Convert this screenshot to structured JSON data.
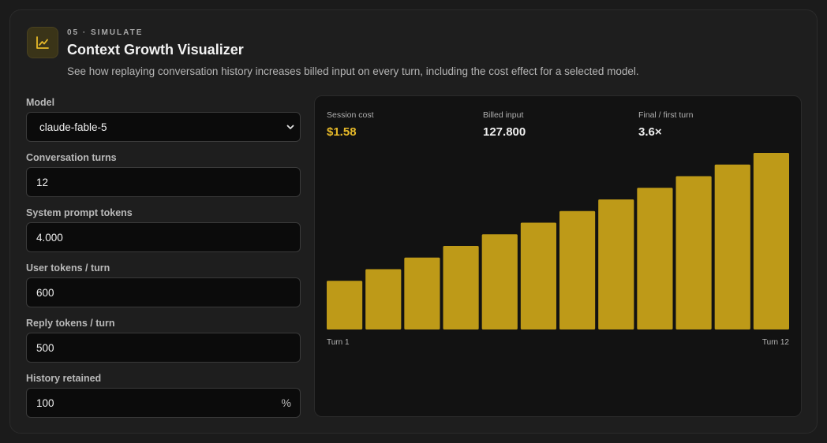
{
  "header": {
    "icon": "line-chart-icon",
    "eyebrow": "05 · SIMULATE",
    "title": "Context Growth Visualizer",
    "subtitle": "See how replaying conversation history increases billed input on every turn, including the cost effect for a selected model."
  },
  "form": {
    "model": {
      "label": "Model",
      "value": "claude-fable-5"
    },
    "turns": {
      "label": "Conversation turns",
      "value": "12"
    },
    "system": {
      "label": "System prompt tokens",
      "value": "4.000"
    },
    "user": {
      "label": "User tokens / turn",
      "value": "600"
    },
    "reply": {
      "label": "Reply tokens / turn",
      "value": "500"
    },
    "history": {
      "label": "History retained",
      "value": "100",
      "suffix": "%"
    }
  },
  "stats": {
    "cost": {
      "label": "Session cost",
      "value": "$1.58"
    },
    "billed": {
      "label": "Billed input",
      "value": "127.800"
    },
    "ratio": {
      "label": "Final / first turn",
      "value": "3.6×"
    }
  },
  "colors": {
    "accent": "#e6b929",
    "bar": "#be9a18"
  },
  "chart_data": {
    "type": "bar",
    "categories": [
      "1",
      "2",
      "3",
      "4",
      "5",
      "6",
      "7",
      "8",
      "9",
      "10",
      "11",
      "12"
    ],
    "values": [
      4600,
      5700,
      6800,
      7900,
      9000,
      10100,
      11200,
      12300,
      13400,
      14500,
      15600,
      16700
    ],
    "ylim": [
      0,
      16700
    ],
    "x_start_label": "Turn 1",
    "x_end_label": "Turn 12",
    "grid": false,
    "legend": "none"
  }
}
